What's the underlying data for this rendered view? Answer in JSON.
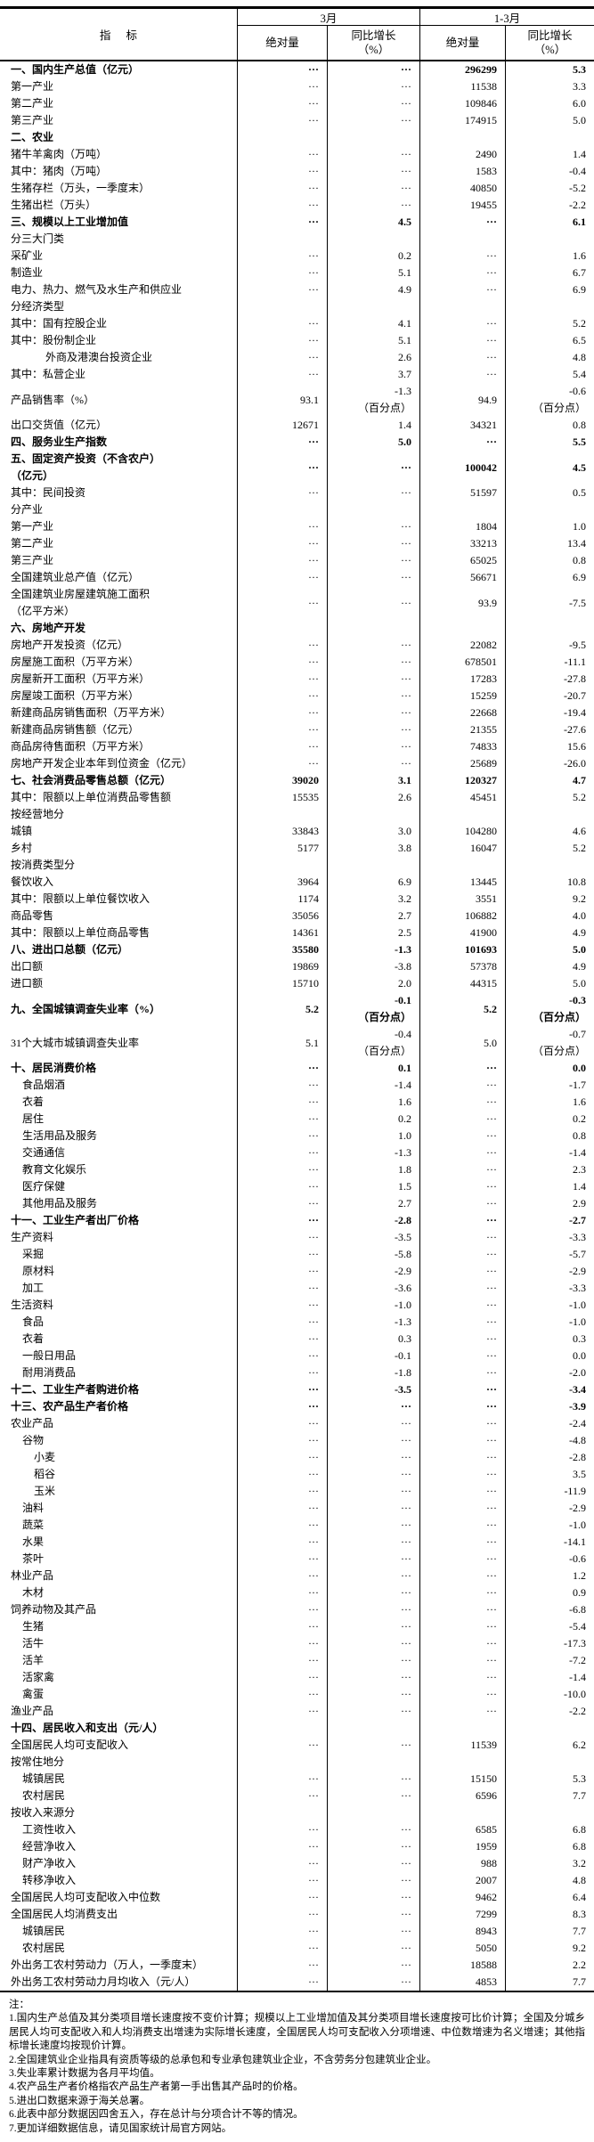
{
  "table": {
    "indicator_header": "指 标",
    "col_groups": [
      {
        "label": "3月"
      },
      {
        "label": "1-3月"
      }
    ],
    "sub_headers": [
      {
        "line1": "绝对量",
        "line2": ""
      },
      {
        "line1": "同比增长",
        "line2": "（%）"
      },
      {
        "line1": "绝对量",
        "line2": ""
      },
      {
        "line1": "同比增长",
        "line2": "（%）"
      }
    ],
    "rows": [
      {
        "label": "一、国内生产总值（亿元）",
        "bold": true,
        "indent": 0,
        "cells": [
          "···",
          "···",
          "296299",
          "5.3"
        ]
      },
      {
        "label": "第一产业",
        "indent": 0,
        "cells": [
          "···",
          "···",
          "11538",
          "3.3"
        ]
      },
      {
        "label": "第二产业",
        "indent": 0,
        "cells": [
          "···",
          "···",
          "109846",
          "6.0"
        ]
      },
      {
        "label": "第三产业",
        "indent": 0,
        "cells": [
          "···",
          "···",
          "174915",
          "5.0"
        ]
      },
      {
        "label": "二、农业",
        "bold": true,
        "indent": 0,
        "cells": [
          "",
          "",
          "",
          ""
        ]
      },
      {
        "label": "猪牛羊禽肉（万吨）",
        "indent": 0,
        "cells": [
          "···",
          "···",
          "2490",
          "1.4"
        ]
      },
      {
        "label": "其中：猪肉（万吨）",
        "indent": 0,
        "cells": [
          "···",
          "···",
          "1583",
          "-0.4"
        ]
      },
      {
        "label": "生猪存栏（万头，一季度末）",
        "indent": 0,
        "cells": [
          "···",
          "···",
          "40850",
          "-5.2"
        ]
      },
      {
        "label": "生猪出栏（万头）",
        "indent": 0,
        "cells": [
          "···",
          "···",
          "19455",
          "-2.2"
        ]
      },
      {
        "label": "三、规模以上工业增加值",
        "bold": true,
        "indent": 0,
        "cells": [
          "···",
          "4.5",
          "···",
          "6.1"
        ]
      },
      {
        "label": "分三大门类",
        "indent": 0,
        "cells": [
          "",
          "",
          "",
          ""
        ]
      },
      {
        "label": "采矿业",
        "indent": 0,
        "cells": [
          "···",
          "0.2",
          "···",
          "1.6"
        ]
      },
      {
        "label": "制造业",
        "indent": 0,
        "cells": [
          "···",
          "5.1",
          "···",
          "6.7"
        ]
      },
      {
        "label": "电力、热力、燃气及水生产和供应业",
        "indent": 0,
        "cells": [
          "···",
          "4.9",
          "···",
          "6.9"
        ]
      },
      {
        "label": "分经济类型",
        "indent": 0,
        "cells": [
          "",
          "",
          "",
          ""
        ]
      },
      {
        "label": "其中：国有控股企业",
        "indent": 0,
        "cells": [
          "···",
          "4.1",
          "···",
          "5.2"
        ]
      },
      {
        "label": "其中：股份制企业",
        "indent": 0,
        "cells": [
          "···",
          "5.1",
          "···",
          "6.5"
        ]
      },
      {
        "label": "外商及港澳台投资企业",
        "indent": 3,
        "cells": [
          "···",
          "2.6",
          "···",
          "4.8"
        ]
      },
      {
        "label": "其中：私营企业",
        "indent": 0,
        "cells": [
          "···",
          "3.7",
          "···",
          "5.4"
        ]
      },
      {
        "label": "产品销售率（%）",
        "indent": 0,
        "cells": [
          "93.1",
          "-1.3\n（百分点）",
          "94.9",
          "-0.6\n（百分点）"
        ]
      },
      {
        "label": "出口交货值（亿元）",
        "indent": 0,
        "cells": [
          "12671",
          "1.4",
          "34321",
          "0.8"
        ]
      },
      {
        "label": "四、服务业生产指数",
        "bold": true,
        "indent": 0,
        "cells": [
          "···",
          "5.0",
          "···",
          "5.5"
        ]
      },
      {
        "label": "五、固定资产投资（不含农户）\n（亿元）",
        "bold": true,
        "indent": 0,
        "cells": [
          "···",
          "···",
          "100042",
          "4.5"
        ]
      },
      {
        "label": "其中：民间投资",
        "indent": 0,
        "cells": [
          "···",
          "···",
          "51597",
          "0.5"
        ]
      },
      {
        "label": "分产业",
        "indent": 0,
        "cells": [
          "",
          "",
          "",
          ""
        ]
      },
      {
        "label": "第一产业",
        "indent": 0,
        "cells": [
          "···",
          "···",
          "1804",
          "1.0"
        ]
      },
      {
        "label": "第二产业",
        "indent": 0,
        "cells": [
          "···",
          "···",
          "33213",
          "13.4"
        ]
      },
      {
        "label": "第三产业",
        "indent": 0,
        "cells": [
          "···",
          "···",
          "65025",
          "0.8"
        ]
      },
      {
        "label": "全国建筑业总产值（亿元）",
        "indent": 0,
        "cells": [
          "···",
          "···",
          "56671",
          "6.9"
        ]
      },
      {
        "label": "全国建筑业房屋建筑施工面积\n（亿平方米）",
        "indent": 0,
        "cells": [
          "···",
          "···",
          "93.9",
          "-7.5"
        ]
      },
      {
        "label": "六、房地产开发",
        "bold": true,
        "indent": 0,
        "cells": [
          "",
          "",
          "",
          ""
        ]
      },
      {
        "label": "房地产开发投资（亿元）",
        "indent": 0,
        "cells": [
          "···",
          "···",
          "22082",
          "-9.5"
        ]
      },
      {
        "label": "房屋施工面积（万平方米）",
        "indent": 0,
        "cells": [
          "···",
          "···",
          "678501",
          "-11.1"
        ]
      },
      {
        "label": "房屋新开工面积（万平方米）",
        "indent": 0,
        "cells": [
          "···",
          "···",
          "17283",
          "-27.8"
        ]
      },
      {
        "label": "房屋竣工面积（万平方米）",
        "indent": 0,
        "cells": [
          "···",
          "···",
          "15259",
          "-20.7"
        ]
      },
      {
        "label": "新建商品房销售面积（万平方米）",
        "indent": 0,
        "cells": [
          "···",
          "···",
          "22668",
          "-19.4"
        ]
      },
      {
        "label": "新建商品房销售额（亿元）",
        "indent": 0,
        "cells": [
          "···",
          "···",
          "21355",
          "-27.6"
        ]
      },
      {
        "label": "商品房待售面积（万平方米）",
        "indent": 0,
        "cells": [
          "···",
          "···",
          "74833",
          "15.6"
        ]
      },
      {
        "label": "房地产开发企业本年到位资金（亿元）",
        "indent": 0,
        "cells": [
          "···",
          "···",
          "25689",
          "-26.0"
        ]
      },
      {
        "label": "七、社会消费品零售总额（亿元）",
        "bold": true,
        "indent": 0,
        "cells": [
          "39020",
          "3.1",
          "120327",
          "4.7"
        ]
      },
      {
        "label": "其中：限额以上单位消费品零售额",
        "indent": 0,
        "cells": [
          "15535",
          "2.6",
          "45451",
          "5.2"
        ]
      },
      {
        "label": "按经营地分",
        "indent": 0,
        "cells": [
          "",
          "",
          "",
          ""
        ]
      },
      {
        "label": "城镇",
        "indent": 0,
        "cells": [
          "33843",
          "3.0",
          "104280",
          "4.6"
        ]
      },
      {
        "label": "乡村",
        "indent": 0,
        "cells": [
          "5177",
          "3.8",
          "16047",
          "5.2"
        ]
      },
      {
        "label": "按消费类型分",
        "indent": 0,
        "cells": [
          "",
          "",
          "",
          ""
        ]
      },
      {
        "label": "餐饮收入",
        "indent": 0,
        "cells": [
          "3964",
          "6.9",
          "13445",
          "10.8"
        ]
      },
      {
        "label": "其中：限额以上单位餐饮收入",
        "indent": 0,
        "cells": [
          "1174",
          "3.2",
          "3551",
          "9.2"
        ]
      },
      {
        "label": "商品零售",
        "indent": 0,
        "cells": [
          "35056",
          "2.7",
          "106882",
          "4.0"
        ]
      },
      {
        "label": "其中：限额以上单位商品零售",
        "indent": 0,
        "cells": [
          "14361",
          "2.5",
          "41900",
          "4.9"
        ]
      },
      {
        "label": "八、进出口总额（亿元）",
        "bold": true,
        "indent": 0,
        "cells": [
          "35580",
          "-1.3",
          "101693",
          "5.0"
        ]
      },
      {
        "label": "出口额",
        "indent": 0,
        "cells": [
          "19869",
          "-3.8",
          "57378",
          "4.9"
        ]
      },
      {
        "label": "进口额",
        "indent": 0,
        "cells": [
          "15710",
          "2.0",
          "44315",
          "5.0"
        ]
      },
      {
        "label": "九、全国城镇调查失业率（%）",
        "bold": true,
        "indent": 0,
        "cells": [
          "5.2",
          "-0.1\n（百分点）",
          "5.2",
          "-0.3\n（百分点）"
        ]
      },
      {
        "label": "31个大城市城镇调查失业率",
        "indent": 0,
        "cells": [
          "5.1",
          "-0.4\n（百分点）",
          "5.0",
          "-0.7\n（百分点）"
        ]
      },
      {
        "label": "十、居民消费价格",
        "bold": true,
        "indent": 0,
        "cells": [
          "···",
          "0.1",
          "···",
          "0.0"
        ]
      },
      {
        "label": "食品烟酒",
        "indent": 1,
        "cells": [
          "···",
          "-1.4",
          "···",
          "-1.7"
        ]
      },
      {
        "label": "衣着",
        "indent": 1,
        "cells": [
          "···",
          "1.6",
          "···",
          "1.6"
        ]
      },
      {
        "label": "居住",
        "indent": 1,
        "cells": [
          "···",
          "0.2",
          "···",
          "0.2"
        ]
      },
      {
        "label": "生活用品及服务",
        "indent": 1,
        "cells": [
          "···",
          "1.0",
          "···",
          "0.8"
        ]
      },
      {
        "label": "交通通信",
        "indent": 1,
        "cells": [
          "···",
          "-1.3",
          "···",
          "-1.4"
        ]
      },
      {
        "label": "教育文化娱乐",
        "indent": 1,
        "cells": [
          "···",
          "1.8",
          "···",
          "2.3"
        ]
      },
      {
        "label": "医疗保健",
        "indent": 1,
        "cells": [
          "···",
          "1.5",
          "···",
          "1.4"
        ]
      },
      {
        "label": "其他用品及服务",
        "indent": 1,
        "cells": [
          "···",
          "2.7",
          "···",
          "2.9"
        ]
      },
      {
        "label": "十一、工业生产者出厂价格",
        "bold": true,
        "indent": 0,
        "cells": [
          "···",
          "-2.8",
          "···",
          "-2.7"
        ]
      },
      {
        "label": "生产资料",
        "indent": 0,
        "cells": [
          "···",
          "-3.5",
          "···",
          "-3.3"
        ]
      },
      {
        "label": "采掘",
        "indent": 1,
        "cells": [
          "···",
          "-5.8",
          "···",
          "-5.7"
        ]
      },
      {
        "label": "原材料",
        "indent": 1,
        "cells": [
          "···",
          "-2.9",
          "···",
          "-2.9"
        ]
      },
      {
        "label": "加工",
        "indent": 1,
        "cells": [
          "···",
          "-3.6",
          "···",
          "-3.3"
        ]
      },
      {
        "label": "生活资料",
        "indent": 0,
        "cells": [
          "···",
          "-1.0",
          "···",
          "-1.0"
        ]
      },
      {
        "label": "食品",
        "indent": 1,
        "cells": [
          "···",
          "-1.3",
          "···",
          "-1.0"
        ]
      },
      {
        "label": "衣着",
        "indent": 1,
        "cells": [
          "···",
          "0.3",
          "···",
          "0.3"
        ]
      },
      {
        "label": "一般日用品",
        "indent": 1,
        "cells": [
          "···",
          "-0.1",
          "···",
          "0.0"
        ]
      },
      {
        "label": "耐用消费品",
        "indent": 1,
        "cells": [
          "···",
          "-1.8",
          "···",
          "-2.0"
        ]
      },
      {
        "label": "十二、工业生产者购进价格",
        "bold": true,
        "indent": 0,
        "cells": [
          "···",
          "-3.5",
          "···",
          "-3.4"
        ]
      },
      {
        "label": "十三、农产品生产者价格",
        "bold": true,
        "indent": 0,
        "cells": [
          "···",
          "···",
          "···",
          "-3.9"
        ]
      },
      {
        "label": "农业产品",
        "indent": 0,
        "cells": [
          "···",
          "···",
          "···",
          "-2.4"
        ]
      },
      {
        "label": "谷物",
        "indent": 1,
        "cells": [
          "···",
          "···",
          "···",
          "-4.8"
        ]
      },
      {
        "label": "小麦",
        "indent": 2,
        "cells": [
          "···",
          "···",
          "···",
          "-2.8"
        ]
      },
      {
        "label": "稻谷",
        "indent": 2,
        "cells": [
          "···",
          "···",
          "···",
          "3.5"
        ]
      },
      {
        "label": "玉米",
        "indent": 2,
        "cells": [
          "···",
          "···",
          "···",
          "-11.9"
        ]
      },
      {
        "label": "油料",
        "indent": 1,
        "cells": [
          "···",
          "···",
          "···",
          "-2.9"
        ]
      },
      {
        "label": "蔬菜",
        "indent": 1,
        "cells": [
          "···",
          "···",
          "···",
          "-1.0"
        ]
      },
      {
        "label": "水果",
        "indent": 1,
        "cells": [
          "···",
          "···",
          "···",
          "-14.1"
        ]
      },
      {
        "label": "茶叶",
        "indent": 1,
        "cells": [
          "···",
          "···",
          "···",
          "-0.6"
        ]
      },
      {
        "label": "林业产品",
        "indent": 0,
        "cells": [
          "···",
          "···",
          "···",
          "1.2"
        ]
      },
      {
        "label": "木材",
        "indent": 1,
        "cells": [
          "···",
          "···",
          "···",
          "0.9"
        ]
      },
      {
        "label": "饲养动物及其产品",
        "indent": 0,
        "cells": [
          "···",
          "···",
          "···",
          "-6.8"
        ]
      },
      {
        "label": "生猪",
        "indent": 1,
        "cells": [
          "···",
          "···",
          "···",
          "-5.4"
        ]
      },
      {
        "label": "活牛",
        "indent": 1,
        "cells": [
          "···",
          "···",
          "···",
          "-17.3"
        ]
      },
      {
        "label": "活羊",
        "indent": 1,
        "cells": [
          "···",
          "···",
          "···",
          "-7.2"
        ]
      },
      {
        "label": "活家禽",
        "indent": 1,
        "cells": [
          "···",
          "···",
          "···",
          "-1.4"
        ]
      },
      {
        "label": "禽蛋",
        "indent": 1,
        "cells": [
          "···",
          "···",
          "···",
          "-10.0"
        ]
      },
      {
        "label": "渔业产品",
        "indent": 0,
        "cells": [
          "···",
          "···",
          "···",
          "-2.2"
        ]
      },
      {
        "label": "十四、居民收入和支出（元/人）",
        "bold": true,
        "indent": 0,
        "cells": [
          "",
          "",
          "",
          ""
        ]
      },
      {
        "label": "全国居民人均可支配收入",
        "indent": 0,
        "cells": [
          "···",
          "···",
          "11539",
          "6.2"
        ]
      },
      {
        "label": "按常住地分",
        "indent": 0,
        "cells": [
          "",
          "",
          "",
          ""
        ]
      },
      {
        "label": "城镇居民",
        "indent": 1,
        "cells": [
          "···",
          "···",
          "15150",
          "5.3"
        ]
      },
      {
        "label": "农村居民",
        "indent": 1,
        "cells": [
          "···",
          "···",
          "6596",
          "7.7"
        ]
      },
      {
        "label": "按收入来源分",
        "indent": 0,
        "cells": [
          "",
          "",
          "",
          ""
        ]
      },
      {
        "label": "工资性收入",
        "indent": 1,
        "cells": [
          "···",
          "···",
          "6585",
          "6.8"
        ]
      },
      {
        "label": "经营净收入",
        "indent": 1,
        "cells": [
          "···",
          "···",
          "1959",
          "6.8"
        ]
      },
      {
        "label": "财产净收入",
        "indent": 1,
        "cells": [
          "···",
          "···",
          "988",
          "3.2"
        ]
      },
      {
        "label": "转移净收入",
        "indent": 1,
        "cells": [
          "···",
          "···",
          "2007",
          "4.8"
        ]
      },
      {
        "label": "全国居民人均可支配收入中位数",
        "indent": 0,
        "cells": [
          "···",
          "···",
          "9462",
          "6.4"
        ]
      },
      {
        "label": "全国居民人均消费支出",
        "indent": 0,
        "cells": [
          "···",
          "···",
          "7299",
          "8.3"
        ]
      },
      {
        "label": "城镇居民",
        "indent": 1,
        "cells": [
          "···",
          "···",
          "8943",
          "7.7"
        ]
      },
      {
        "label": "农村居民",
        "indent": 1,
        "cells": [
          "···",
          "···",
          "5050",
          "9.2"
        ]
      },
      {
        "label": "外出务工农村劳动力（万人，一季度末）",
        "indent": 0,
        "cells": [
          "···",
          "···",
          "18588",
          "2.2"
        ]
      },
      {
        "label": "外出务工农村劳动力月均收入（元/人）",
        "indent": 0,
        "cells": [
          "···",
          "···",
          "4853",
          "7.7"
        ]
      }
    ]
  },
  "notes": {
    "title": "注：",
    "items": [
      "1.国内生产总值及其分类项目增长速度按不变价计算；规模以上工业增加值及其分类项目增长速度按可比价计算；全国及分城乡居民人均可支配收入和人均消费支出增速为实际增长速度，全国居民人均可支配收入分项增速、中位数增速为名义增速；其他指标增长速度均按现价计算。",
      "2.全国建筑业企业指具有资质等级的总承包和专业承包建筑业企业，不含劳务分包建筑业企业。",
      "3.失业率累计数据为各月平均值。",
      "4.农产品生产者价格指农产品生产者第一手出售其产品时的价格。",
      "5.进出口数据来源于海关总署。",
      "6.此表中部分数据因四舍五入，存在总计与分项合计不等的情况。",
      "7.更加详细数据信息，请见国家统计局官方网站。"
    ]
  }
}
